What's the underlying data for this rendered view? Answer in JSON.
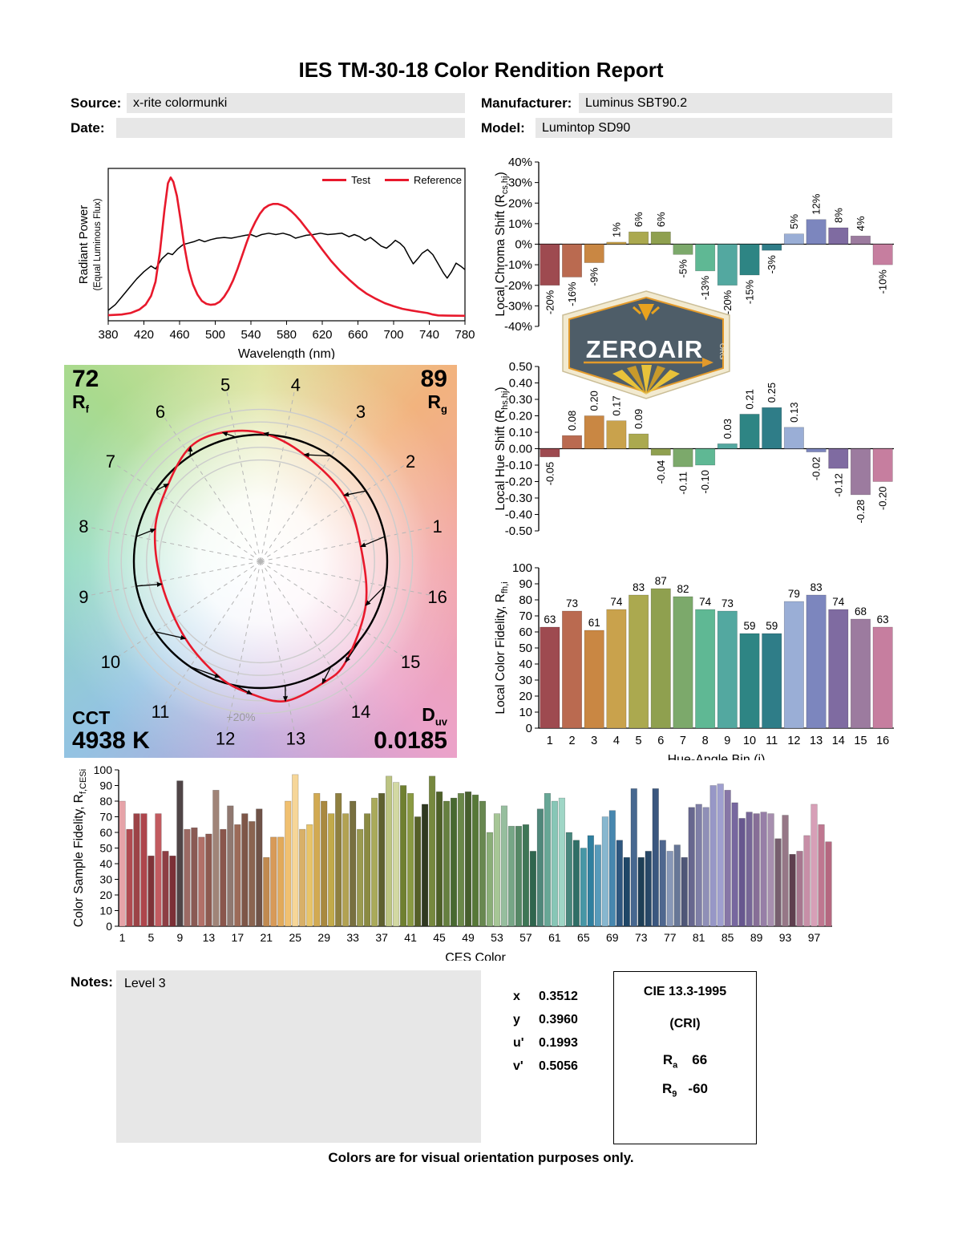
{
  "title": "IES TM-30-18 Color Rendition Report",
  "header": {
    "source": {
      "label": "Source:",
      "value": "x-rite colormunki"
    },
    "manufacturer": {
      "label": "Manufacturer:",
      "value": "Luminus SBT90.2"
    },
    "date": {
      "label": "Date:",
      "value": ""
    },
    "model": {
      "label": "Model:",
      "value": "Lumintop SD90"
    }
  },
  "watermark": {
    "name": "ZEROAIR",
    "org": "ORG"
  },
  "cvg": {
    "rf": {
      "value": "72",
      "sym": "R",
      "sub": "f"
    },
    "rg": {
      "value": "89",
      "sym": "R",
      "sub": "g"
    },
    "cct": {
      "label": "CCT",
      "value": "4938 K"
    },
    "duv": {
      "sym": "D",
      "sub": "uv",
      "value": "0.0185"
    },
    "ring_label": "+20%",
    "bin_numbers": [
      "1",
      "2",
      "3",
      "4",
      "5",
      "6",
      "7",
      "8",
      "9",
      "10",
      "11",
      "12",
      "13",
      "14",
      "15",
      "16"
    ]
  },
  "notes": {
    "label": "Notes:",
    "value": "Level 3"
  },
  "chromaticity": {
    "rows": [
      {
        "label": "x",
        "value": "0.3512"
      },
      {
        "label": "y",
        "value": "0.3960"
      },
      {
        "label": "u'",
        "value": "0.1993"
      },
      {
        "label": "v'",
        "value": "0.5056"
      }
    ]
  },
  "cri": {
    "title": "CIE 13.3-1995",
    "subtitle": "(CRI)",
    "rows": [
      {
        "sym": "R",
        "sub": "a",
        "value": "66"
      },
      {
        "sym": "R",
        "sub": "9",
        "value": "-60"
      }
    ]
  },
  "footer": "Colors are for visual orientation purposes only.",
  "bin_colors": [
    "#9E4A50",
    "#BA6A50",
    "#C98743",
    "#C9A24C",
    "#ABA94F",
    "#8FA04F",
    "#7CA96B",
    "#5FB894",
    "#53A8A0",
    "#2E8584",
    "#2F7D88",
    "#9AAED6",
    "#7C86BE",
    "#7F6BA1",
    "#9C7B9F",
    "#C67E9F"
  ],
  "ces_colors": [
    "#E6A3A8",
    "#B04A50",
    "#9C4347",
    "#AE454C",
    "#7F3338",
    "#C25B60",
    "#8E3E44",
    "#7C3036",
    "#504547",
    "#9C6A64",
    "#8A5A54",
    "#B27068",
    "#8E5A50",
    "#A08478",
    "#8A564C",
    "#907870",
    "#9C6A58",
    "#7E5648",
    "#8A6450",
    "#6F5348",
    "#C08A50",
    "#D89A58",
    "#E2AA5A",
    "#F0C070",
    "#F6D698",
    "#D8B068",
    "#E8C468",
    "#D2AA52",
    "#A98940",
    "#C2AA4A",
    "#8F8040",
    "#B2A252",
    "#787040",
    "#9A9A50",
    "#8A8A42",
    "#AAAA5A",
    "#5E6030",
    "#BCC482",
    "#D2D8A2",
    "#6F8030",
    "#8A9A42",
    "#566028",
    "#2F3820",
    "#76883E",
    "#4E6028",
    "#668040",
    "#486830",
    "#6A8848",
    "#475F2C",
    "#577838",
    "#688850",
    "#8AAE78",
    "#A6C696",
    "#96BE9E",
    "#76A686",
    "#568866",
    "#3E7656",
    "#2F664E",
    "#4F877A",
    "#67A796",
    "#87C6B6",
    "#9FD6C6",
    "#47867C",
    "#2F6E66",
    "#4797A6",
    "#2F7F9F",
    "#579ABA",
    "#87B7CF",
    "#4787AF",
    "#2F577F",
    "#1F4767",
    "#476890",
    "#1E3F57",
    "#274767",
    "#3B577F",
    "#4F678F",
    "#8797B7",
    "#677797",
    "#4F5777",
    "#67678F",
    "#7F7FA7",
    "#8F8FB7",
    "#9797C7",
    "#9F9FCF",
    "#8777A7",
    "#77679F",
    "#67578F",
    "#776797",
    "#876F97",
    "#977FA7",
    "#A78FAF",
    "#775F6F",
    "#967787",
    "#5F3F4F",
    "#A7778F",
    "#C78FA7",
    "#D79FB7",
    "#BF7790",
    "#B56880"
  ],
  "chart_data": [
    {
      "id": "spd",
      "type": "line",
      "xlabel": "Wavelength (nm)",
      "ylabel_line1": "Radiant Power",
      "ylabel_line2": "(Equal Luminous Flux)",
      "xlim": [
        380,
        780
      ],
      "xtick_step": 40,
      "ylim": [
        0,
        1
      ],
      "legend": [
        {
          "label": "Test",
          "color": "#e8192c"
        },
        {
          "label": "Reference",
          "color": "#e8192c"
        }
      ],
      "series": [
        {
          "name": "Reference",
          "color": "#000000",
          "width": 1.5,
          "points": [
            [
              380,
              0.04
            ],
            [
              388,
              0.08
            ],
            [
              396,
              0.14
            ],
            [
              404,
              0.2
            ],
            [
              412,
              0.26
            ],
            [
              420,
              0.31
            ],
            [
              428,
              0.35
            ],
            [
              433,
              0.33
            ],
            [
              440,
              0.4
            ],
            [
              447,
              0.44
            ],
            [
              452,
              0.43
            ],
            [
              458,
              0.47
            ],
            [
              464,
              0.5
            ],
            [
              470,
              0.51
            ],
            [
              476,
              0.52
            ],
            [
              482,
              0.535
            ],
            [
              488,
              0.52
            ],
            [
              495,
              0.535
            ],
            [
              502,
              0.545
            ],
            [
              510,
              0.55
            ],
            [
              518,
              0.545
            ],
            [
              526,
              0.555
            ],
            [
              534,
              0.565
            ],
            [
              540,
              0.57
            ],
            [
              546,
              0.555
            ],
            [
              552,
              0.57
            ],
            [
              560,
              0.58
            ],
            [
              568,
              0.57
            ],
            [
              576,
              0.58
            ],
            [
              584,
              0.565
            ],
            [
              590,
              0.545
            ],
            [
              596,
              0.555
            ],
            [
              602,
              0.565
            ],
            [
              610,
              0.57
            ],
            [
              618,
              0.58
            ],
            [
              626,
              0.57
            ],
            [
              634,
              0.575
            ],
            [
              642,
              0.58
            ],
            [
              650,
              0.555
            ],
            [
              656,
              0.57
            ],
            [
              662,
              0.555
            ],
            [
              668,
              0.53
            ],
            [
              674,
              0.55
            ],
            [
              680,
              0.52
            ],
            [
              686,
              0.49
            ],
            [
              692,
              0.475
            ],
            [
              697,
              0.5
            ],
            [
              702,
              0.53
            ],
            [
              707,
              0.51
            ],
            [
              712,
              0.48
            ],
            [
              717,
              0.42
            ],
            [
              722,
              0.365
            ],
            [
              727,
              0.4
            ],
            [
              732,
              0.44
            ],
            [
              738,
              0.465
            ],
            [
              744,
              0.43
            ],
            [
              750,
              0.365
            ],
            [
              756,
              0.3
            ],
            [
              760,
              0.265
            ],
            [
              765,
              0.31
            ],
            [
              770,
              0.37
            ],
            [
              775,
              0.35
            ],
            [
              780,
              0.325
            ]
          ]
        },
        {
          "name": "Test",
          "color": "#e8192c",
          "width": 2.6,
          "points": [
            [
              380,
              0.005
            ],
            [
              395,
              0.01
            ],
            [
              405,
              0.02
            ],
            [
              415,
              0.045
            ],
            [
              422,
              0.08
            ],
            [
              428,
              0.14
            ],
            [
              433,
              0.24
            ],
            [
              438,
              0.45
            ],
            [
              443,
              0.74
            ],
            [
              447,
              0.93
            ],
            [
              450,
              0.97
            ],
            [
              453,
              0.94
            ],
            [
              457,
              0.84
            ],
            [
              461,
              0.68
            ],
            [
              465,
              0.5
            ],
            [
              470,
              0.33
            ],
            [
              475,
              0.22
            ],
            [
              480,
              0.15
            ],
            [
              485,
              0.105
            ],
            [
              490,
              0.085
            ],
            [
              495,
              0.078
            ],
            [
              500,
              0.082
            ],
            [
              505,
              0.1
            ],
            [
              510,
              0.135
            ],
            [
              515,
              0.185
            ],
            [
              520,
              0.25
            ],
            [
              525,
              0.33
            ],
            [
              530,
              0.42
            ],
            [
              535,
              0.51
            ],
            [
              540,
              0.595
            ],
            [
              545,
              0.66
            ],
            [
              550,
              0.715
            ],
            [
              555,
              0.755
            ],
            [
              560,
              0.775
            ],
            [
              565,
              0.785
            ],
            [
              570,
              0.785
            ],
            [
              575,
              0.775
            ],
            [
              580,
              0.76
            ],
            [
              585,
              0.735
            ],
            [
              590,
              0.705
            ],
            [
              595,
              0.67
            ],
            [
              600,
              0.63
            ],
            [
              610,
              0.55
            ],
            [
              620,
              0.465
            ],
            [
              630,
              0.385
            ],
            [
              640,
              0.315
            ],
            [
              650,
              0.255
            ],
            [
              660,
              0.2
            ],
            [
              670,
              0.155
            ],
            [
              680,
              0.12
            ],
            [
              690,
              0.09
            ],
            [
              700,
              0.068
            ],
            [
              710,
              0.05
            ],
            [
              720,
              0.038
            ],
            [
              730,
              0.028
            ],
            [
              738,
              0.02
            ],
            [
              744,
              0.01
            ],
            [
              750,
              0.004
            ],
            [
              760,
              0.002
            ],
            [
              780,
              0.001
            ]
          ]
        }
      ]
    },
    {
      "id": "chroma",
      "type": "bar",
      "ylabel": {
        "pre": "Local Chroma Shift (R",
        "sub": "cs,hj",
        "post": ")"
      },
      "ylim": [
        -40,
        40
      ],
      "ystep": 10,
      "tick_format": "pct",
      "values": [
        -20,
        -16,
        -9,
        1,
        6,
        6,
        -5,
        -13,
        -20,
        -15,
        -3,
        5,
        12,
        8,
        4,
        -10
      ],
      "labels": [
        "-20%",
        "-16%",
        "-9%",
        "1%",
        "6%",
        "6%",
        "-5%",
        "-13%",
        "-20%",
        "-15%",
        "-3%",
        "5%",
        "12%",
        "8%",
        "4%",
        "-10%"
      ]
    },
    {
      "id": "hue",
      "type": "bar",
      "ylabel": {
        "pre": "Local Hue Shift (R",
        "sub": "hs,hj",
        "post": ")"
      },
      "ylim": [
        -0.5,
        0.5
      ],
      "ystep": 0.1,
      "tick_format": "dec2",
      "values": [
        -0.05,
        0.08,
        0.2,
        0.17,
        0.09,
        -0.04,
        -0.11,
        -0.1,
        0.03,
        0.21,
        0.25,
        0.13,
        -0.02,
        -0.12,
        -0.28,
        -0.2
      ],
      "labels": [
        "-0.05",
        "0.08",
        "0.20",
        "0.17",
        "0.09",
        "-0.04",
        "-0.11",
        "-0.10",
        "0.03",
        "0.21",
        "0.25",
        "0.13",
        "-0.02",
        "-0.12",
        "-0.28",
        "-0.20"
      ]
    },
    {
      "id": "fid",
      "type": "bar",
      "ylabel": {
        "pre": "Local Color Fidelity, R",
        "sub": "fh,i",
        "post": ""
      },
      "xlabel": "Hue-Angle Bin (j)",
      "ylim": [
        0,
        100
      ],
      "ystep": 10,
      "tick_format": "int",
      "categories": [
        "1",
        "2",
        "3",
        "4",
        "5",
        "6",
        "7",
        "8",
        "9",
        "10",
        "11",
        "12",
        "13",
        "14",
        "15",
        "16"
      ],
      "values": [
        63,
        73,
        61,
        74,
        83,
        87,
        82,
        74,
        73,
        59,
        59,
        79,
        83,
        74,
        68,
        63
      ],
      "labels": [
        "63",
        "73",
        "61",
        "74",
        "83",
        "87",
        "82",
        "74",
        "73",
        "59",
        "59",
        "79",
        "83",
        "74",
        "68",
        "63"
      ]
    },
    {
      "id": "ces",
      "type": "bar",
      "ylabel": {
        "pre": "Color Sample Fidelity, R",
        "sub": "f,CESi",
        "post": ""
      },
      "xlabel": "CES Color",
      "ylim": [
        0,
        100
      ],
      "ystep": 10,
      "tick_format": "int",
      "xticks": [
        "1",
        "5",
        "9",
        "13",
        "17",
        "21",
        "25",
        "29",
        "33",
        "37",
        "41",
        "45",
        "49",
        "53",
        "57",
        "61",
        "65",
        "69",
        "73",
        "77",
        "81",
        "85",
        "89",
        "93",
        "97"
      ],
      "xtick_every": 4,
      "values": [
        80,
        62,
        72,
        72,
        45,
        72,
        48,
        45,
        93,
        62,
        63,
        57,
        59,
        87,
        62,
        77,
        65,
        72,
        67,
        75,
        44,
        57,
        57,
        80,
        97,
        62,
        65,
        85,
        80,
        72,
        85,
        72,
        80,
        62,
        72,
        82,
        85,
        96,
        92,
        90,
        85,
        70,
        78,
        96,
        86,
        80,
        82,
        85,
        86,
        84,
        80,
        60,
        72,
        77,
        64,
        64,
        65,
        48,
        75,
        85,
        80,
        82,
        60,
        55,
        50,
        58,
        52,
        70,
        74,
        55,
        44,
        88,
        44,
        48,
        88,
        55,
        48,
        52,
        44,
        76,
        78,
        76,
        90,
        91,
        87,
        79,
        69,
        73,
        72,
        73,
        72,
        56,
        71,
        46,
        48,
        58,
        78,
        65,
        54
      ]
    }
  ]
}
